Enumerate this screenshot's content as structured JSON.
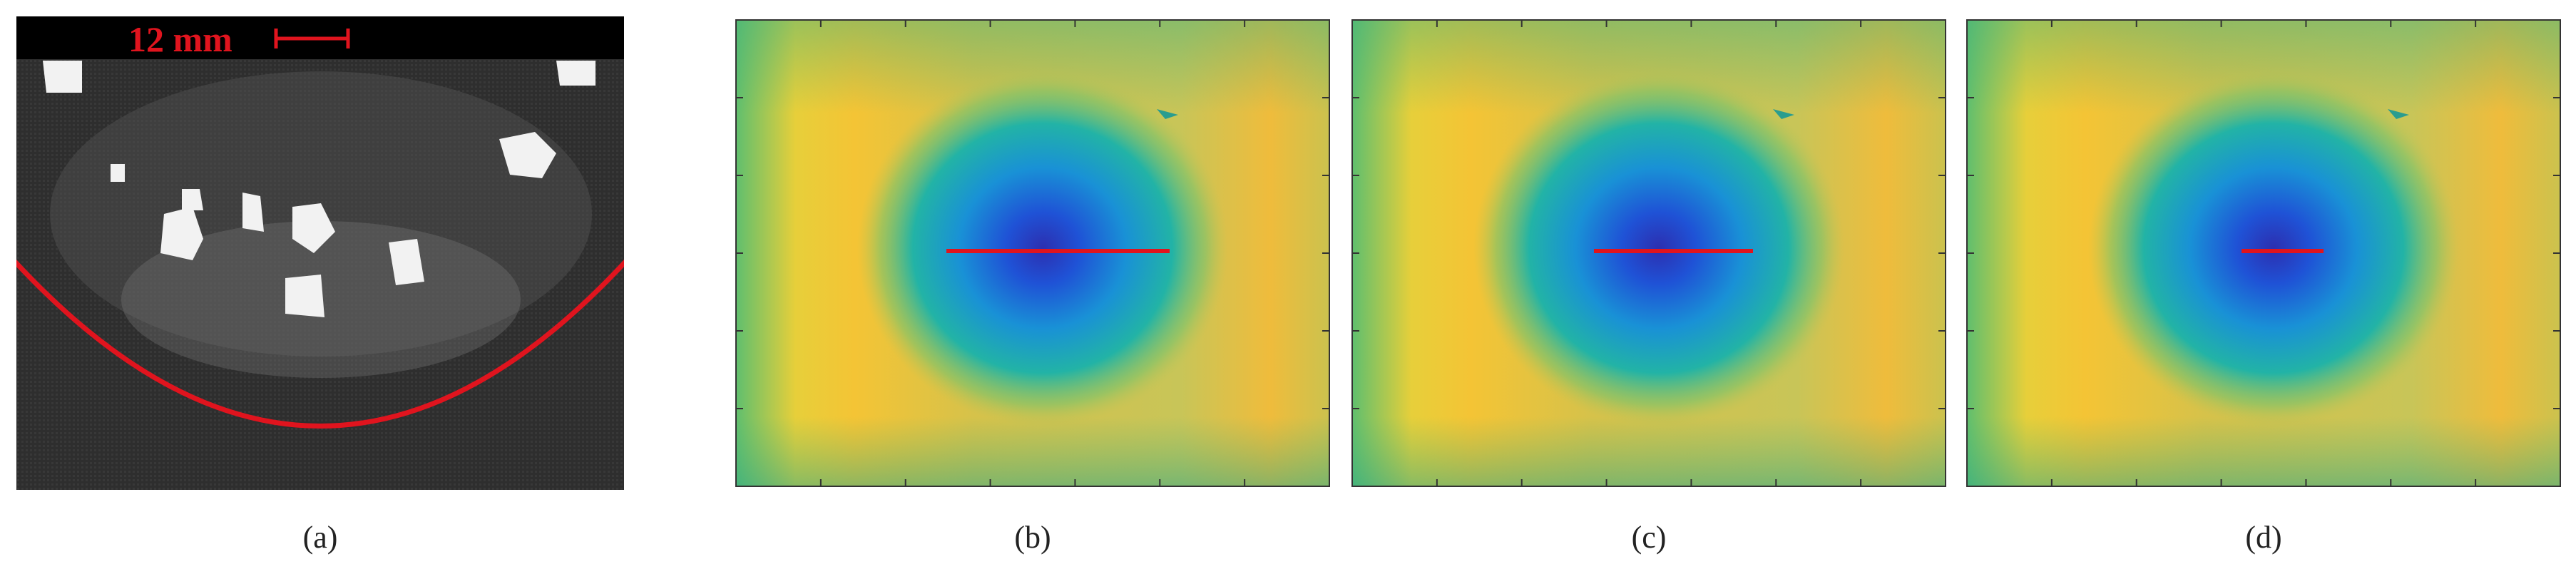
{
  "scale_bar": "12 mm",
  "panels": [
    {
      "label": "(a)"
    },
    {
      "label": "(b)"
    },
    {
      "label": "(c)"
    },
    {
      "label": "(d)"
    }
  ]
}
